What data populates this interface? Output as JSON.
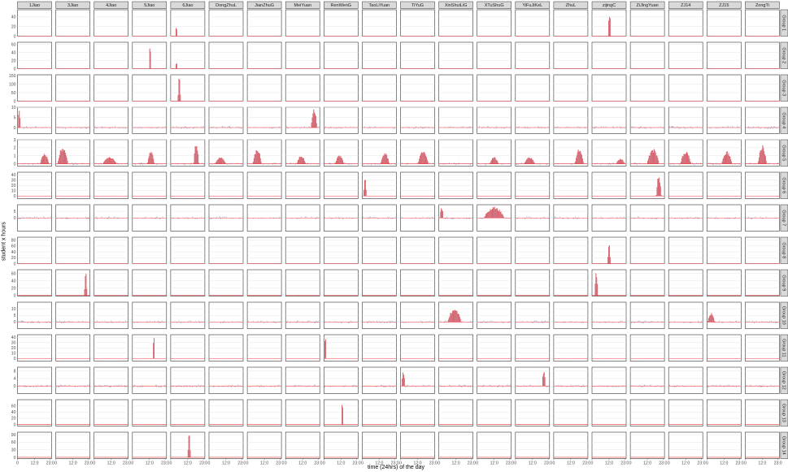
{
  "chart_data": {
    "type": "bar",
    "title": "",
    "xlabel": "time (24hrs) of the day",
    "ylabel": "student x hours",
    "facet_columns": [
      "1Jiao",
      "3Jiao",
      "4Jiao",
      "5Jiao",
      "6Jiao",
      "DongZhuL",
      "JianZhuG",
      "MeiYuan",
      "RenWenG",
      "TaoLiYuan",
      "TiYuG",
      "XinShuiLiG",
      "XTuShuG",
      "YiFuJiKeL",
      "ZhuL",
      "zijingC",
      "ZiJingYuan",
      "ZJ14",
      "ZJ15",
      "ZongTi"
    ],
    "facet_rows": [
      "Group 1",
      "Group 2",
      "Group 3",
      "Group 4",
      "Group 5",
      "Group 6",
      "Group 7",
      "Group 8",
      "Group 9",
      "Group 10",
      "Group 11",
      "Group 12",
      "Group 13",
      "Group 14"
    ],
    "x_tick_labels": [
      "0",
      "12:0",
      "23:0"
    ],
    "x_range": [
      0,
      24
    ],
    "row_ylim": [
      [
        0,
        55
      ],
      [
        0,
        65
      ],
      [
        0,
        155
      ],
      [
        -3,
        10
      ],
      [
        -0.3,
        3
      ],
      [
        -5,
        45
      ],
      [
        -10,
        10
      ],
      [
        0,
        90
      ],
      [
        -2,
        70
      ],
      [
        -5,
        15
      ],
      [
        -5,
        45
      ],
      [
        -4,
        10
      ],
      [
        -5,
        80
      ],
      [
        -5,
        100
      ]
    ],
    "row_yticks": [
      [
        "0",
        "20",
        "40"
      ],
      [
        "0",
        "20",
        "40",
        "60"
      ],
      [
        "0",
        "50",
        "100",
        "150"
      ],
      [
        "0",
        "5",
        "10"
      ],
      [
        "0",
        "1",
        "2",
        "3"
      ],
      [
        "0",
        "10",
        "20",
        "30",
        "40"
      ],
      [
        "0",
        "5"
      ],
      [
        "0",
        "20",
        "40",
        "60",
        "80"
      ],
      [
        "0",
        "20",
        "40",
        "60"
      ],
      [
        "0",
        "5",
        "10"
      ],
      [
        "0",
        "10",
        "20",
        "30",
        "40"
      ],
      [
        "0",
        "4",
        "8"
      ],
      [
        "0",
        "20",
        "40",
        "60"
      ],
      [
        "0",
        "30",
        "60",
        "90"
      ]
    ],
    "series": [
      {
        "fill": "#a3b8d9",
        "role": "difference bars"
      },
      {
        "fill": "#f5b5b0",
        "stroke": "#ee3b3b",
        "role": "count bars"
      }
    ],
    "grid": true,
    "highlighted_panels": [
      {
        "row": "Group 1",
        "col": "zijingC",
        "center": 12.3,
        "width": 1.5,
        "peak": 52
      },
      {
        "row": "Group 1",
        "col": "6Jiao",
        "center": 4,
        "width": 1.2,
        "peak": 18
      },
      {
        "row": "Group 2",
        "col": "5Jiao",
        "center": 12.5,
        "width": 1.2,
        "peak": 60
      },
      {
        "row": "Group 2",
        "col": "6Jiao",
        "center": 4,
        "width": 1.2,
        "peak": 14
      },
      {
        "row": "Group 3",
        "col": "6Jiao",
        "center": 6,
        "width": 1.5,
        "peak": 150
      },
      {
        "row": "Group 4",
        "col": "1Jiao",
        "center": 1.2,
        "width": 1.5,
        "peak": 9
      },
      {
        "row": "Group 4",
        "col": "MeiYuan",
        "center": 20,
        "width": 3.5,
        "peak": 9
      },
      {
        "row": "Group 5",
        "col": "1Jiao",
        "center": 19,
        "width": 5,
        "peak": 1.2
      },
      {
        "row": "Group 5",
        "col": "3Jiao",
        "center": 5,
        "width": 6,
        "peak": 2
      },
      {
        "row": "Group 5",
        "col": "4Jiao",
        "center": 11,
        "width": 8,
        "peak": 0.8
      },
      {
        "row": "Group 5",
        "col": "5Jiao",
        "center": 13,
        "width": 4,
        "peak": 1.5
      },
      {
        "row": "Group 5",
        "col": "6Jiao",
        "center": 18,
        "width": 3,
        "peak": 2.5
      },
      {
        "row": "Group 5",
        "col": "DongZhuL",
        "center": 8,
        "width": 6,
        "peak": 0.8
      },
      {
        "row": "Group 5",
        "col": "JianZhuG",
        "center": 7,
        "width": 5,
        "peak": 1.8
      },
      {
        "row": "Group 5",
        "col": "MeiYuan",
        "center": 11,
        "width": 5,
        "peak": 1
      },
      {
        "row": "Group 5",
        "col": "RenWenG",
        "center": 11,
        "width": 5,
        "peak": 1
      },
      {
        "row": "Group 5",
        "col": "TaoLiYuan",
        "center": 16,
        "width": 5,
        "peak": 1.3
      },
      {
        "row": "Group 5",
        "col": "TiYuG",
        "center": 16,
        "width": 6,
        "peak": 1.6
      },
      {
        "row": "Group 5",
        "col": "XTuShuG",
        "center": 12,
        "width": 5,
        "peak": 0.8
      },
      {
        "row": "Group 5",
        "col": "YiFuJiKeL",
        "center": 10,
        "width": 6,
        "peak": 0.8
      },
      {
        "row": "Group 5",
        "col": "ZhuL",
        "center": 18,
        "width": 5,
        "peak": 1.9
      },
      {
        "row": "Group 5",
        "col": "zijingC",
        "center": 20,
        "width": 5,
        "peak": 0.6
      },
      {
        "row": "Group 5",
        "col": "ZiJingYuan",
        "center": 16,
        "width": 7,
        "peak": 1.8
      },
      {
        "row": "Group 5",
        "col": "ZJ14",
        "center": 12,
        "width": 6,
        "peak": 1.5
      },
      {
        "row": "Group 5",
        "col": "ZJ15",
        "center": 14,
        "width": 6,
        "peak": 1.5
      },
      {
        "row": "Group 5",
        "col": "ZongTi",
        "center": 12,
        "width": 5,
        "peak": 2.2
      },
      {
        "row": "Group 6",
        "col": "TaoLiYuan",
        "center": 2,
        "width": 1.5,
        "peak": 40
      },
      {
        "row": "Group 6",
        "col": "ZiJingYuan",
        "center": 20,
        "width": 3,
        "peak": 40
      },
      {
        "row": "Group 7",
        "col": "XinShuiLiG",
        "center": 2,
        "width": 2,
        "peak": 8
      },
      {
        "row": "Group 7",
        "col": "XTuShuG",
        "center": 12,
        "width": 12,
        "peak": 8
      },
      {
        "row": "Group 8",
        "col": "zijingC",
        "center": 12,
        "width": 1.5,
        "peak": 80
      },
      {
        "row": "Group 9",
        "col": "3Jiao",
        "center": 21,
        "width": 1.5,
        "peak": 65
      },
      {
        "row": "Group 9",
        "col": "zijingC",
        "center": 3,
        "width": 2,
        "peak": 60
      },
      {
        "row": "Group 10",
        "col": "XinShuiLiG",
        "center": 11,
        "width": 8,
        "peak": 10
      },
      {
        "row": "Group 10",
        "col": "ZJ15",
        "center": 3,
        "width": 4,
        "peak": 7
      },
      {
        "row": "Group 11",
        "col": "5Jiao",
        "center": 15,
        "width": 1.2,
        "peak": 42
      },
      {
        "row": "Group 11",
        "col": "RenWenG",
        "center": 1,
        "width": 1.2,
        "peak": 45
      },
      {
        "row": "Group 12",
        "col": "TiYuG",
        "center": 2,
        "width": 2,
        "peak": 8
      },
      {
        "row": "Group 12",
        "col": "YiFuJiKeL",
        "center": 20,
        "width": 2,
        "peak": 8
      },
      {
        "row": "Group 13",
        "col": "RenWenG",
        "center": 13,
        "width": 1.2,
        "peak": 75
      },
      {
        "row": "Group 14",
        "col": "6Jiao",
        "center": 13,
        "width": 1.5,
        "peak": 90
      }
    ]
  }
}
